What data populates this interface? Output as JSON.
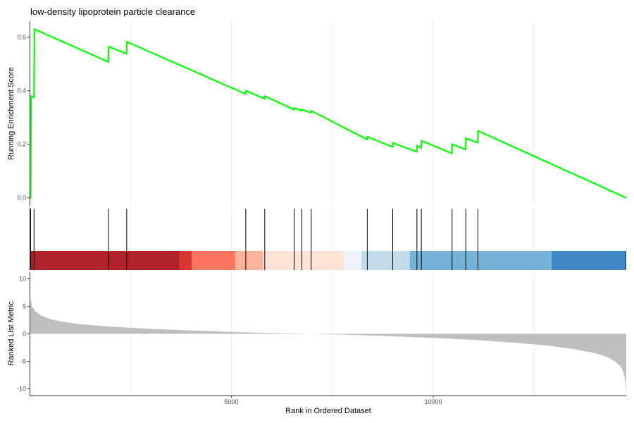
{
  "chart_data": {
    "type": "line",
    "title": "low-density lipoprotein particle clearance",
    "xlabel": "Rank in Ordered Dataset",
    "xlim": [
      0,
      14780
    ],
    "x_ticks": [
      5000,
      10000
    ],
    "x_tick_labels": [
      "5000",
      "10000"
    ],
    "grid": true,
    "panels": {
      "enrichment": {
        "ylabel": "Running Enrichment Score",
        "ylim": [
          -0.03,
          0.66
        ],
        "y_ticks": [
          0.0,
          0.2,
          0.4,
          0.6
        ],
        "y_tick_labels": [
          "0.0",
          "0.2",
          "0.4",
          "0.6"
        ],
        "line_color": "#00ff00",
        "series": [
          {
            "x": [
              0,
              25,
              35,
              110,
              120,
              1950,
              1960,
              2400,
              2410,
              5350,
              5360,
              5820,
              5830,
              6550,
              6560,
              6740,
              6750,
              6970,
              6980,
              8360,
              8370,
              8990,
              9000,
              9590,
              9600,
              9700,
              9710,
              10460,
              10470,
              10800,
              10810,
              11100,
              11110,
              14780
            ],
            "y": [
              0.0,
              0.0,
              0.38,
              0.375,
              0.63,
              0.508,
              0.565,
              0.538,
              0.583,
              0.388,
              0.4,
              0.37,
              0.38,
              0.329,
              0.336,
              0.325,
              0.33,
              0.318,
              0.325,
              0.218,
              0.228,
              0.19,
              0.205,
              0.172,
              0.195,
              0.187,
              0.213,
              0.166,
              0.2,
              0.181,
              0.222,
              0.206,
              0.25,
              0.0
            ]
          }
        ]
      },
      "hits": {
        "positions": [
          25,
          110,
          1955,
          2405,
          5355,
          5825,
          6555,
          6745,
          6975,
          8365,
          8995,
          9595,
          9705,
          10465,
          10805,
          11105
        ]
      },
      "color_bar": {
        "segments": [
          {
            "from": 0,
            "to": 3720,
            "color": "#b2222b"
          },
          {
            "from": 3720,
            "to": 4020,
            "color": "#d7362f"
          },
          {
            "from": 4020,
            "to": 5100,
            "color": "#fc755e"
          },
          {
            "from": 5100,
            "to": 5780,
            "color": "#fbb49c"
          },
          {
            "from": 5780,
            "to": 7790,
            "color": "#fee2d6"
          },
          {
            "from": 7790,
            "to": 8220,
            "color": "#eef3fa"
          },
          {
            "from": 8220,
            "to": 9420,
            "color": "#c2dbe9"
          },
          {
            "from": 9420,
            "to": 12930,
            "color": "#75b4d8"
          },
          {
            "from": 12930,
            "to": 14780,
            "color": "#3f88c3"
          }
        ]
      },
      "ranked": {
        "ylabel": "Ranked List Metric",
        "ylim": [
          -11.2,
          11.2
        ],
        "y_ticks": [
          10,
          5,
          0,
          -5,
          -10
        ],
        "y_tick_labels": [
          "10",
          "5",
          "0",
          "-5",
          "-10"
        ],
        "fill_color": "#bebebe",
        "x": [
          0,
          20,
          60,
          150,
          300,
          500,
          800,
          1200,
          2000,
          3000,
          4000,
          5000,
          6000,
          7000,
          8000,
          9000,
          10000,
          11000,
          12000,
          12800,
          13500,
          14000,
          14300,
          14500,
          14650,
          14720,
          14760,
          14780
        ],
        "y": [
          7.5,
          6.2,
          5.0,
          4.0,
          3.3,
          2.7,
          2.2,
          1.8,
          1.3,
          0.9,
          0.6,
          0.35,
          0.15,
          0.0,
          -0.2,
          -0.45,
          -0.75,
          -1.1,
          -1.6,
          -2.1,
          -2.8,
          -3.5,
          -4.2,
          -5.0,
          -6.0,
          -7.2,
          -8.6,
          -10.7
        ]
      }
    }
  }
}
